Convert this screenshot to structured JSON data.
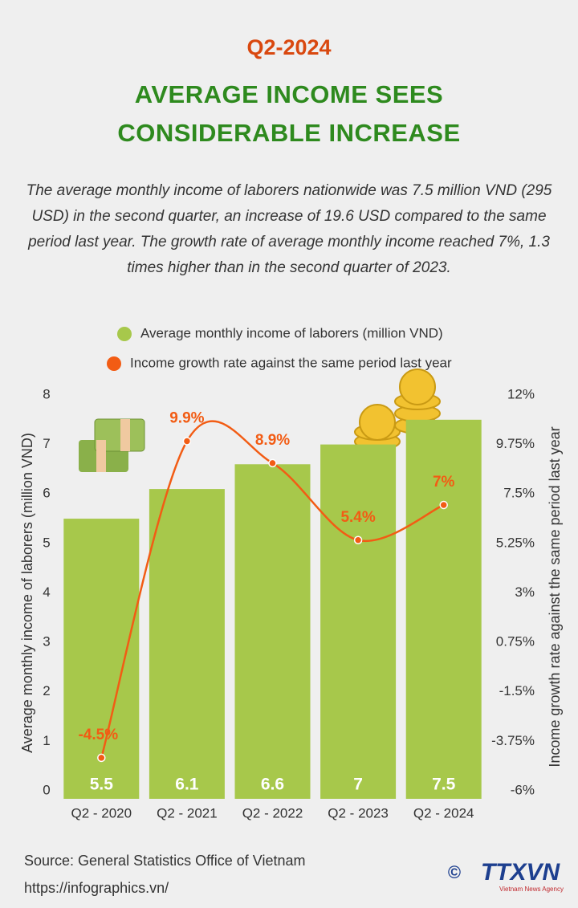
{
  "header": {
    "kicker": "Q2-2024",
    "title_lines": [
      "AVERAGE INCOME SEES",
      "CONSIDERABLE INCREASE"
    ],
    "description": "The average monthly income of laborers nationwide was 7.5 million VND (295 USD) in the second quarter, an increase of 19.6 USD compared to the same period last year. The growth rate of average monthly income reached 7%, 1.3 times higher than in the second quarter of 2023."
  },
  "chart_data": {
    "type": "combo",
    "categories": [
      "Q2 - 2020",
      "Q2 - 2021",
      "Q2 - 2022",
      "Q2 - 2023",
      "Q2 - 2024"
    ],
    "series": [
      {
        "name": "Average monthly income of laborers (million VND)",
        "type": "bar",
        "color": "#a7c84b",
        "values": [
          5.5,
          6.1,
          6.6,
          7,
          7.5
        ]
      },
      {
        "name": "Income growth rate against the same period last year",
        "type": "line",
        "axis": "y2",
        "color": "#f25c14",
        "values": [
          -4.5,
          9.9,
          8.9,
          5.4,
          7
        ],
        "value_labels": [
          "-4.5%",
          "9.9%",
          "8.9%",
          "5.4%",
          "7%"
        ]
      }
    ],
    "ylabel": "Average monthly income of laborers (million VND)",
    "y2label": "Income growth rate against the same period last year",
    "ylim": [
      0,
      8
    ],
    "yticks": [
      0,
      1,
      2,
      3,
      4,
      5,
      6,
      7,
      8
    ],
    "y2lim": [
      -6,
      12
    ],
    "y2ticks": [
      {
        "value": -6,
        "label": "-6%"
      },
      {
        "value": -3.75,
        "label": "-3.75%"
      },
      {
        "value": -1.5,
        "label": "-1.5%"
      },
      {
        "value": 0.75,
        "label": "0.75%"
      },
      {
        "value": 3,
        "label": "3%"
      },
      {
        "value": 5.25,
        "label": "5.25%"
      },
      {
        "value": 7.5,
        "label": "7.5%"
      },
      {
        "value": 9.75,
        "label": "9.75%"
      },
      {
        "value": 12,
        "label": "12%"
      }
    ],
    "grid": false
  },
  "footer": {
    "source": "Source: General Statistics Office of Vietnam",
    "url": "https://infographics.vn/",
    "logo": "TTXVN",
    "logo_sub": "Vietnam News Agency"
  }
}
